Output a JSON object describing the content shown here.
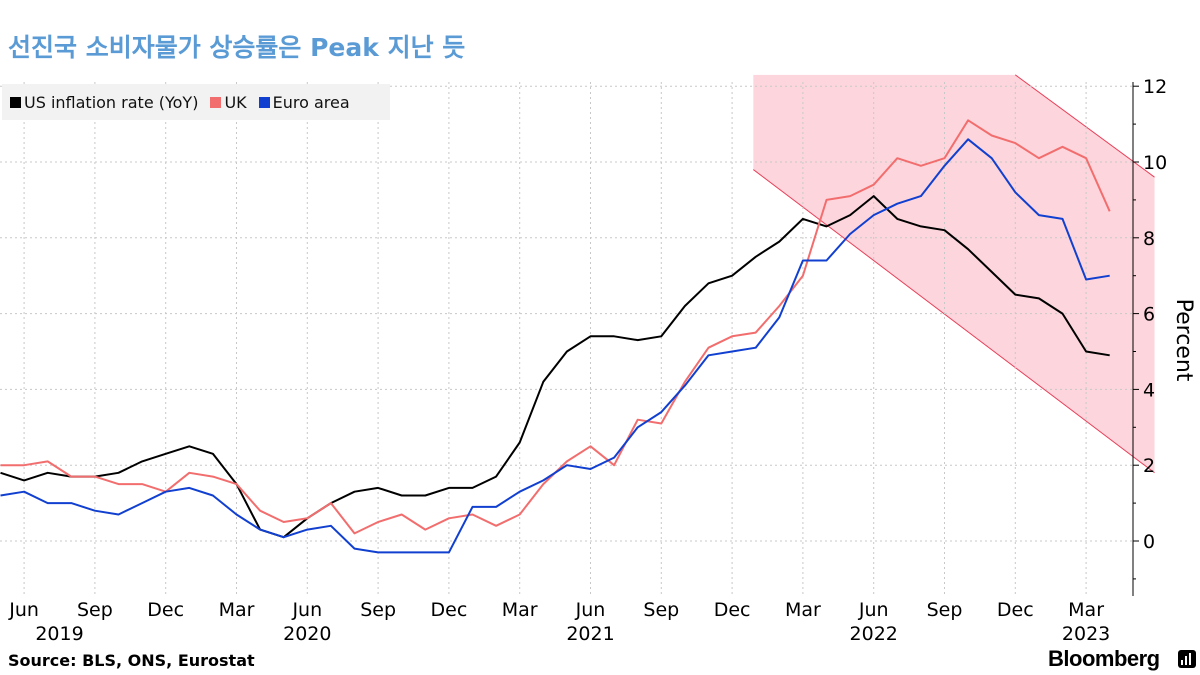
{
  "title": "선진국 소비자물가 상승률은 Peak 지난 듯",
  "source": "Source: BLS, ONS, Eurostat",
  "brand": "Bloomberg",
  "chart_data": {
    "type": "line",
    "ylabel": "Percent",
    "ylim": [
      -1.4,
      12.3
    ],
    "yticks": [
      0,
      2,
      4,
      6,
      8,
      10,
      12
    ],
    "x_start": "2019-05",
    "month_ticks": [
      {
        "m": 1,
        "label": "Jun"
      },
      {
        "m": 4,
        "label": "Sep"
      },
      {
        "m": 7,
        "label": "Dec"
      },
      {
        "m": 10,
        "label": "Mar"
      },
      {
        "m": 13,
        "label": "Jun"
      },
      {
        "m": 16,
        "label": "Sep"
      },
      {
        "m": 19,
        "label": "Dec"
      },
      {
        "m": 22,
        "label": "Mar"
      },
      {
        "m": 25,
        "label": "Jun"
      },
      {
        "m": 28,
        "label": "Sep"
      },
      {
        "m": 31,
        "label": "Dec"
      },
      {
        "m": 34,
        "label": "Mar"
      },
      {
        "m": 37,
        "label": "Jun"
      },
      {
        "m": 40,
        "label": "Sep"
      },
      {
        "m": 43,
        "label": "Dec"
      },
      {
        "m": 46,
        "label": "Mar"
      }
    ],
    "year_labels": [
      {
        "m": 2.5,
        "label": "2019"
      },
      {
        "m": 13,
        "label": "2020"
      },
      {
        "m": 25,
        "label": "2021"
      },
      {
        "m": 37,
        "label": "2022"
      },
      {
        "m": 46,
        "label": "2023"
      }
    ],
    "series": [
      {
        "name": "US inflation rate (YoY)",
        "color": "#000000",
        "values": [
          1.8,
          1.6,
          1.8,
          1.7,
          1.7,
          1.8,
          2.1,
          2.3,
          2.5,
          2.3,
          1.5,
          0.3,
          0.1,
          0.6,
          1.0,
          1.3,
          1.4,
          1.2,
          1.2,
          1.4,
          1.4,
          1.7,
          2.6,
          4.2,
          5.0,
          5.4,
          5.4,
          5.3,
          5.4,
          6.2,
          6.8,
          7.0,
          7.5,
          7.9,
          8.5,
          8.3,
          8.6,
          9.1,
          8.5,
          8.3,
          8.2,
          7.7,
          7.1,
          6.5,
          6.4,
          6.0,
          5.0,
          4.9
        ]
      },
      {
        "name": "UK",
        "color": "#f26e6e",
        "values": [
          2.0,
          2.0,
          2.1,
          1.7,
          1.7,
          1.5,
          1.5,
          1.3,
          1.8,
          1.7,
          1.5,
          0.8,
          0.5,
          0.6,
          1.0,
          0.2,
          0.5,
          0.7,
          0.3,
          0.6,
          0.7,
          0.4,
          0.7,
          1.5,
          2.1,
          2.5,
          2.0,
          3.2,
          3.1,
          4.2,
          5.1,
          5.4,
          5.5,
          6.2,
          7.0,
          9.0,
          9.1,
          9.4,
          10.1,
          9.9,
          10.1,
          11.1,
          10.7,
          10.5,
          10.1,
          10.4,
          10.1,
          8.7
        ]
      },
      {
        "name": "Euro area",
        "color": "#1140d0",
        "values": [
          1.2,
          1.3,
          1.0,
          1.0,
          0.8,
          0.7,
          1.0,
          1.3,
          1.4,
          1.2,
          0.7,
          0.3,
          0.1,
          0.3,
          0.4,
          -0.2,
          -0.3,
          -0.3,
          -0.3,
          -0.3,
          0.9,
          0.9,
          1.3,
          1.6,
          2.0,
          1.9,
          2.2,
          3.0,
          3.4,
          4.1,
          4.9,
          5.0,
          5.1,
          5.9,
          7.4,
          7.4,
          8.1,
          8.6,
          8.9,
          9.1,
          9.9,
          10.6,
          10.1,
          9.2,
          8.6,
          8.5,
          6.9,
          7.0
        ]
      }
    ],
    "annotation": {
      "type": "shaded-channel",
      "color": "#fdd6dd",
      "edge_color": "#e8405a",
      "upper": [
        {
          "m": 43,
          "v": 12.3
        },
        {
          "m": 48.9,
          "v": 9.6
        }
      ],
      "lower": [
        {
          "m": 31.9,
          "v": 9.8
        },
        {
          "m": 48.9,
          "v": 1.8
        }
      ],
      "top_left_m": 31.9
    }
  }
}
